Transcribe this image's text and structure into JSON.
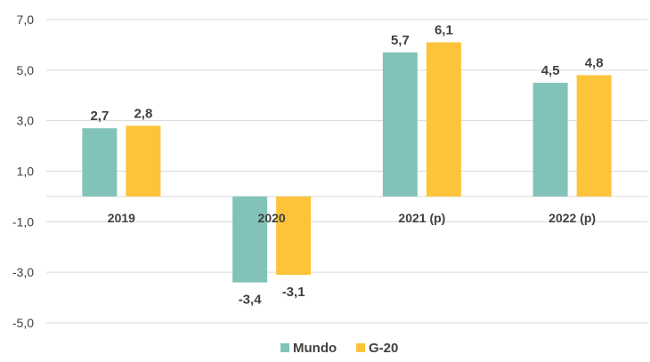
{
  "chart_data": {
    "type": "bar",
    "categories": [
      "2019",
      "2020",
      "2021 (p)",
      "2022 (p)"
    ],
    "series": [
      {
        "name": "Mundo",
        "color": "#82C3B9",
        "values": [
          2.7,
          -3.4,
          5.7,
          4.5
        ],
        "labels": [
          "2,7",
          "-3,4",
          "5,7",
          "4,5"
        ]
      },
      {
        "name": "G-20",
        "color": "#FDC43A",
        "values": [
          2.8,
          -3.1,
          6.1,
          4.8
        ],
        "labels": [
          "2,8",
          "-3,1",
          "6,1",
          "4,8"
        ]
      }
    ],
    "yticks": [
      7.0,
      5.0,
      3.0,
      1.0,
      -1.0,
      -3.0,
      -5.0
    ],
    "ytick_labels": [
      "7,0",
      "5,0",
      "3,0",
      "1,0",
      "-1,0",
      "-3,0",
      "-5,0"
    ],
    "ylim": [
      -5.0,
      7.0
    ],
    "grid": true,
    "gridline_color": "#d9d9d9",
    "legend_position": "bottom"
  }
}
